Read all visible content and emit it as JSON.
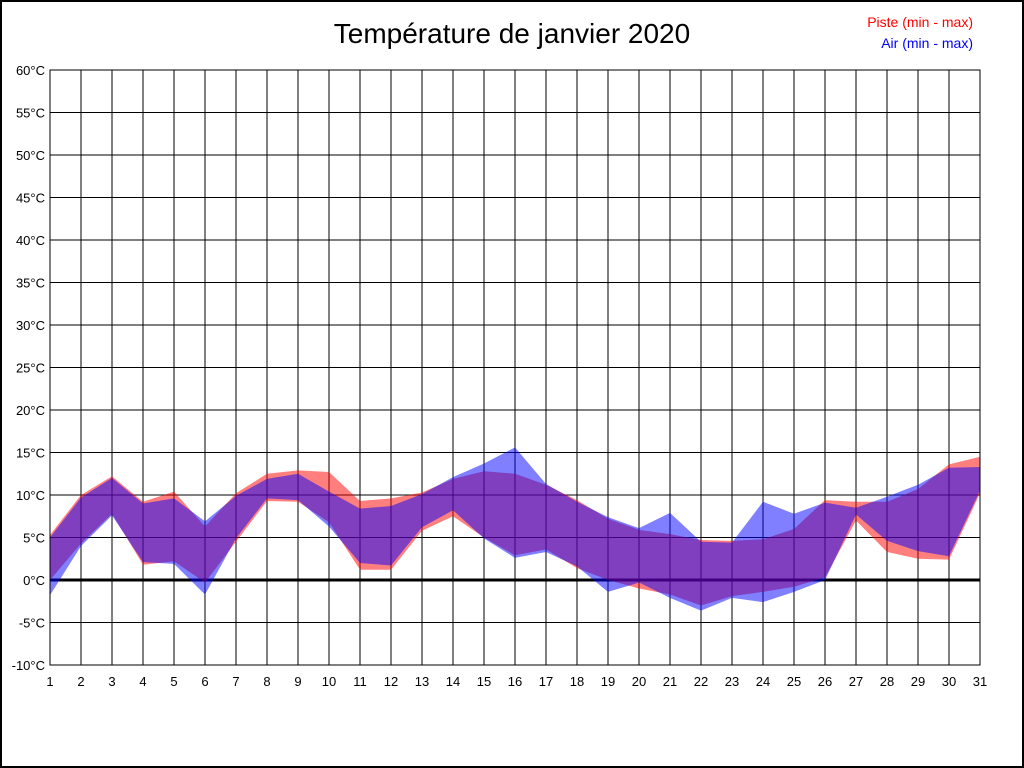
{
  "page": {
    "background": "#ffffff",
    "border_color": "#000000"
  },
  "chart": {
    "title": "Température de janvier 2020",
    "legend": [
      {
        "label": "Piste (min - max)",
        "color": "#ff0000"
      },
      {
        "label": "Air (min - max)",
        "color": "#0000ff"
      }
    ]
  },
  "chart_data": {
    "type": "area",
    "subtype": "min-max-bands",
    "title": "Température de janvier 2020",
    "xlabel": "",
    "ylabel": "",
    "x": [
      1,
      2,
      3,
      4,
      5,
      6,
      7,
      8,
      9,
      10,
      11,
      12,
      13,
      14,
      15,
      16,
      17,
      18,
      19,
      20,
      21,
      22,
      23,
      24,
      25,
      26,
      27,
      28,
      29,
      30,
      31
    ],
    "xlim": [
      1,
      31
    ],
    "ylim": [
      -10,
      60
    ],
    "y_ticks": [
      -10,
      -5,
      0,
      5,
      10,
      15,
      20,
      25,
      30,
      35,
      40,
      45,
      50,
      55,
      60
    ],
    "y_tick_suffix": "°C",
    "grid": true,
    "grid_color": "#000000",
    "zero_line": true,
    "zero_line_width": 3,
    "legend_position": "top-right",
    "series": [
      {
        "name": "Piste (min - max)",
        "color": "#ff0000",
        "fill_opacity": 0.5,
        "min": [
          0.0,
          4.3,
          7.8,
          1.8,
          2.2,
          -0.3,
          4.5,
          9.3,
          9.2,
          6.8,
          1.2,
          1.2,
          5.8,
          7.5,
          5.0,
          2.9,
          3.6,
          1.4,
          0.0,
          -1.0,
          -1.7,
          -3.0,
          -1.9,
          -1.4,
          -0.8,
          0.3,
          7.0,
          3.3,
          2.5,
          2.4,
          10.2
        ],
        "max": [
          5.3,
          10.0,
          12.2,
          9.2,
          10.4,
          6.3,
          10.2,
          12.5,
          12.9,
          12.7,
          9.3,
          9.6,
          10.3,
          11.9,
          12.8,
          12.5,
          11.2,
          9.4,
          7.2,
          5.9,
          5.4,
          4.7,
          4.6,
          4.8,
          6.0,
          9.4,
          9.2,
          9.2,
          10.7,
          13.6,
          14.5
        ]
      },
      {
        "name": "Air (min - max)",
        "color": "#0000ff",
        "fill_opacity": 0.5,
        "min": [
          -1.8,
          4.0,
          7.6,
          2.1,
          1.9,
          -1.7,
          4.9,
          9.6,
          9.4,
          6.3,
          2.0,
          1.7,
          6.2,
          8.2,
          4.9,
          2.6,
          3.3,
          1.6,
          -1.4,
          -0.3,
          -2.1,
          -3.6,
          -2.1,
          -2.6,
          -1.4,
          0.0,
          7.7,
          4.6,
          3.4,
          2.8,
          10.5
        ],
        "max": [
          5.0,
          9.7,
          12.0,
          9.0,
          9.6,
          6.9,
          9.9,
          11.9,
          12.5,
          10.4,
          8.4,
          8.7,
          10.1,
          12.1,
          13.7,
          15.6,
          11.3,
          9.2,
          7.4,
          6.1,
          7.9,
          4.5,
          4.4,
          9.2,
          7.8,
          9.1,
          8.5,
          9.8,
          11.2,
          13.2,
          13.3
        ]
      }
    ]
  }
}
